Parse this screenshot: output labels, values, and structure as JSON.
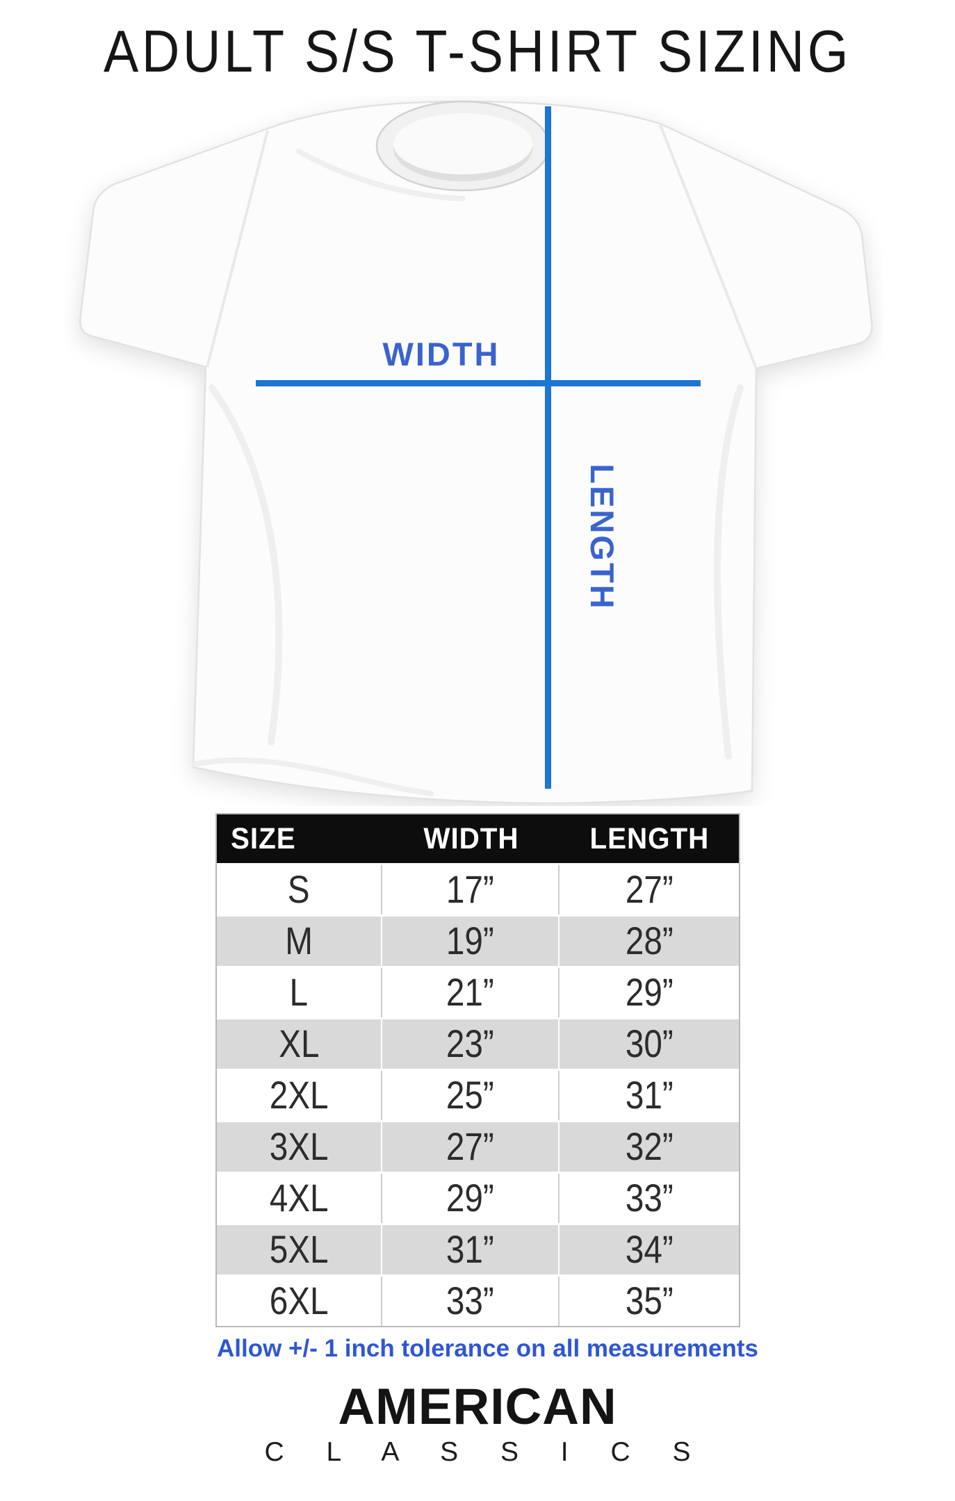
{
  "title": "ADULT S/S T-SHIRT SIZING",
  "shirt_diagram": {
    "width_label": "WIDTH",
    "length_label": "LENGTH"
  },
  "chart_data": {
    "type": "table",
    "title": "ADULT S/S T-SHIRT SIZING",
    "columns": [
      "SIZE",
      "WIDTH",
      "LENGTH"
    ],
    "rows": [
      [
        "S",
        "17”",
        "27”"
      ],
      [
        "M",
        "19”",
        "28”"
      ],
      [
        "L",
        "21”",
        "29”"
      ],
      [
        "XL",
        "23”",
        "30”"
      ],
      [
        "2XL",
        "25”",
        "31”"
      ],
      [
        "3XL",
        "27”",
        "32”"
      ],
      [
        "4XL",
        "29”",
        "33”"
      ],
      [
        "5XL",
        "31”",
        "34”"
      ],
      [
        "6XL",
        "33”",
        "35”"
      ]
    ],
    "units": "inches",
    "zebra_striping": "alternating white and light-gray rows starting white at S",
    "footnote": "Allow +/- 1 inch tolerance on all measurements"
  },
  "tolerance_note": "Allow +/- 1 inch tolerance on all measurements",
  "brand": {
    "line1": "AMERICAN",
    "line2": "C L A S S I C S"
  },
  "colors": {
    "measure_line": "#1b76d4",
    "measure_label": "#3a63cd",
    "note_blue": "#2e56d6",
    "header_bg": "#0d0d0d",
    "alt_row_bg": "#d9d9d9",
    "background": "#ffffff"
  }
}
